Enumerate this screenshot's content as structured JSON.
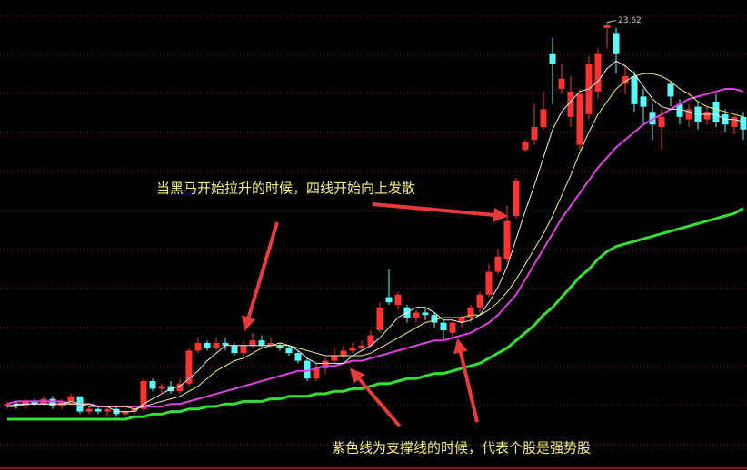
{
  "chart_data": {
    "type": "candlestick",
    "ylim": [
      6,
      24.5
    ],
    "up_color": "#ff3232",
    "down_color": "#54fcfc",
    "open": [
      8.5,
      8.6,
      8.5,
      8.7,
      8.6,
      8.8,
      8.5,
      8.7,
      8.9,
      8.3,
      8.4,
      8.3,
      8.4,
      8.2,
      8.3,
      8.4,
      9.5,
      9.2,
      9.3,
      9.1,
      9.4,
      10.7,
      11.0,
      10.8,
      11.0,
      10.9,
      10.6,
      10.9,
      11.1,
      10.9,
      10.9,
      10.8,
      10.6,
      10.3,
      9.6,
      10.0,
      10.3,
      10.5,
      10.7,
      10.8,
      10.9,
      11.5,
      12.8,
      12.5,
      12.4,
      12.0,
      12.2,
      12.1,
      11.8,
      11.4,
      11.8,
      12.0,
      12.4,
      12.9,
      13.8,
      14.3,
      16.0,
      18.6,
      19.0,
      19.5,
      22.4,
      21.0,
      19.9,
      18.8,
      20.0,
      20.9,
      23.4,
      23.2,
      21.2,
      21.5,
      20.7,
      20.1,
      19.5,
      21.2,
      20.4,
      19.8,
      20.3,
      19.8,
      20.5,
      20.0,
      19.5,
      19.9
    ],
    "high": [
      8.7,
      8.7,
      8.8,
      8.8,
      8.9,
      8.9,
      8.8,
      9.0,
      8.9,
      8.5,
      8.5,
      8.5,
      8.5,
      8.4,
      8.5,
      9.6,
      9.6,
      9.4,
      9.5,
      9.6,
      10.8,
      11.2,
      11.1,
      11.2,
      11.2,
      11.0,
      11.1,
      11.4,
      11.3,
      11.2,
      11.0,
      10.9,
      10.7,
      10.4,
      10.2,
      10.4,
      10.8,
      10.9,
      11.0,
      11.1,
      11.5,
      12.6,
      13.9,
      13.0,
      12.5,
      12.3,
      12.4,
      12.2,
      11.9,
      11.9,
      12.1,
      12.5,
      13.0,
      14.1,
      14.7,
      16.4,
      17.5,
      19.0,
      20.4,
      20.9,
      23.0,
      22.0,
      21.5,
      21.0,
      22.3,
      22.6,
      23.62,
      23.4,
      22.0,
      21.7,
      21.0,
      20.4,
      20.2,
      21.3,
      20.6,
      20.4,
      20.5,
      20.3,
      20.8,
      20.2,
      20.0,
      20.1
    ],
    "low": [
      8.4,
      8.4,
      8.4,
      8.5,
      8.5,
      8.4,
      8.4,
      8.6,
      8.2,
      8.2,
      8.2,
      8.1,
      8.1,
      8.1,
      8.2,
      8.3,
      9.1,
      9.0,
      9.0,
      9.0,
      9.3,
      10.6,
      10.7,
      10.7,
      10.7,
      10.5,
      10.5,
      10.8,
      10.8,
      10.8,
      10.7,
      10.5,
      10.2,
      9.5,
      9.5,
      9.8,
      10.2,
      10.4,
      10.6,
      10.7,
      10.8,
      11.4,
      12.5,
      12.3,
      11.8,
      11.8,
      11.9,
      11.6,
      11.1,
      11.2,
      11.6,
      11.8,
      12.2,
      12.8,
      13.7,
      14.2,
      15.9,
      18.5,
      18.8,
      19.4,
      20.4,
      20.8,
      19.5,
      18.6,
      19.8,
      20.6,
      22.6,
      21.6,
      20.8,
      20.1,
      19.6,
      19.0,
      18.6,
      20.3,
      19.6,
      19.5,
      19.4,
      19.6,
      19.5,
      19.3,
      19.2,
      19.0
    ],
    "close": [
      8.6,
      8.5,
      8.7,
      8.6,
      8.8,
      8.5,
      8.7,
      8.9,
      8.3,
      8.4,
      8.3,
      8.4,
      8.2,
      8.3,
      8.4,
      9.5,
      9.2,
      9.3,
      9.1,
      9.4,
      10.7,
      11.0,
      10.8,
      11.0,
      10.9,
      10.6,
      10.9,
      11.1,
      10.9,
      11.0,
      10.8,
      10.6,
      10.3,
      9.6,
      10.0,
      10.3,
      10.5,
      10.7,
      10.8,
      10.9,
      11.3,
      12.4,
      12.6,
      12.9,
      12.0,
      12.2,
      12.1,
      11.8,
      11.5,
      11.8,
      12.0,
      12.4,
      12.9,
      13.8,
      14.4,
      15.8,
      17.4,
      18.9,
      19.5,
      20.2,
      22.0,
      21.4,
      20.9,
      20.8,
      22.0,
      22.4,
      23.5,
      22.4,
      21.5,
      20.4,
      20.3,
      19.6,
      19.9,
      20.7,
      19.9,
      20.2,
      19.7,
      20.1,
      19.7,
      19.6,
      19.9,
      19.4
    ],
    "series": [
      {
        "color": "#f0f0f0",
        "values": [
          8.5,
          8.6,
          8.6,
          8.6,
          8.6,
          8.6,
          8.6,
          8.7,
          8.6,
          8.5,
          8.5,
          8.5,
          8.3,
          8.3,
          8.3,
          8.6,
          8.8,
          9.0,
          9.2,
          9.3,
          9.6,
          9.9,
          10.3,
          10.6,
          10.9,
          10.9,
          10.9,
          10.9,
          10.9,
          10.9,
          11.0,
          10.9,
          10.7,
          10.4,
          10.2,
          10.2,
          10.2,
          10.2,
          10.5,
          10.7,
          10.9,
          11.2,
          11.6,
          12.0,
          12.2,
          12.4,
          12.4,
          12.2,
          11.9,
          11.9,
          11.8,
          11.9,
          12.1,
          12.6,
          13.2,
          14.0,
          15.1,
          16.2,
          17.2,
          18.3,
          19.4,
          20.1,
          20.5,
          20.9,
          21.0,
          21.3,
          21.8,
          22.1,
          21.9,
          21.6,
          21.1,
          20.6,
          20.3,
          20.2,
          20.2,
          20.1,
          20.0,
          20.0,
          20.0,
          19.8,
          19.8,
          19.7
        ]
      },
      {
        "color": "#f0f080",
        "values": [
          8.5,
          8.5,
          8.6,
          8.6,
          8.6,
          8.6,
          8.6,
          8.6,
          8.6,
          8.6,
          8.5,
          8.5,
          8.5,
          8.5,
          8.4,
          8.5,
          8.6,
          8.7,
          8.8,
          8.9,
          9.1,
          9.3,
          9.6,
          9.9,
          10.1,
          10.3,
          10.4,
          10.6,
          10.8,
          10.9,
          10.9,
          10.9,
          10.8,
          10.7,
          10.6,
          10.5,
          10.5,
          10.5,
          10.5,
          10.5,
          10.6,
          10.8,
          11.0,
          11.2,
          11.4,
          11.6,
          11.8,
          11.9,
          12.0,
          12.0,
          12.0,
          12.1,
          12.1,
          12.3,
          12.6,
          13.0,
          13.5,
          14.1,
          14.7,
          15.3,
          16.0,
          16.8,
          17.6,
          18.5,
          19.3,
          20.0,
          20.5,
          21.0,
          21.3,
          21.5,
          21.6,
          21.6,
          21.5,
          21.3,
          21.0,
          20.8,
          20.5,
          20.3,
          20.2,
          20.1,
          20.0,
          19.9
        ]
      },
      {
        "color": "#e040e0",
        "values": [
          8.6,
          8.7,
          8.7,
          8.7,
          8.7,
          8.7,
          8.7,
          8.6,
          8.6,
          8.6,
          8.5,
          8.5,
          8.5,
          8.5,
          8.5,
          8.5,
          8.5,
          8.5,
          8.6,
          8.6,
          8.7,
          8.8,
          8.9,
          9.0,
          9.1,
          9.2,
          9.3,
          9.4,
          9.5,
          9.6,
          9.7,
          9.8,
          9.9,
          9.9,
          10.0,
          10.1,
          10.1,
          10.2,
          10.3,
          10.3,
          10.4,
          10.5,
          10.6,
          10.7,
          10.8,
          10.9,
          11.0,
          11.1,
          11.1,
          11.2,
          11.3,
          11.4,
          11.6,
          11.8,
          12.1,
          12.5,
          12.9,
          13.5,
          14.1,
          14.7,
          15.3,
          15.9,
          16.4,
          16.9,
          17.4,
          17.9,
          18.3,
          18.7,
          19.0,
          19.3,
          19.6,
          19.8,
          20.0,
          20.2,
          20.4,
          20.6,
          20.7,
          20.8,
          20.9,
          21.0,
          21.0,
          20.9
        ]
      },
      {
        "color": "#33e033",
        "values": [
          8.0,
          8.0,
          8.0,
          8.0,
          8.0,
          8.0,
          8.0,
          8.0,
          8.0,
          8.0,
          8.0,
          8.0,
          8.0,
          8.0,
          8.1,
          8.1,
          8.2,
          8.2,
          8.3,
          8.3,
          8.4,
          8.4,
          8.5,
          8.5,
          8.6,
          8.6,
          8.7,
          8.7,
          8.7,
          8.8,
          8.8,
          8.9,
          8.9,
          8.9,
          9.0,
          9.0,
          9.1,
          9.1,
          9.2,
          9.2,
          9.3,
          9.4,
          9.4,
          9.5,
          9.6,
          9.6,
          9.7,
          9.8,
          9.8,
          9.9,
          10.0,
          10.1,
          10.2,
          10.4,
          10.6,
          10.8,
          11.1,
          11.4,
          11.7,
          12.1,
          12.4,
          12.8,
          13.2,
          13.6,
          13.9,
          14.3,
          14.6,
          14.8,
          14.9,
          15.0,
          15.1,
          15.2,
          15.3,
          15.4,
          15.5,
          15.6,
          15.7,
          15.8,
          15.9,
          16.0,
          16.1,
          16.3
        ]
      }
    ],
    "annotations": [
      "当黑马开始拉升的时候，四线开始向上发散",
      "紫色线为支撑线的时候，代表个股是强势股"
    ],
    "annotation_color": "#f5f07a"
  }
}
